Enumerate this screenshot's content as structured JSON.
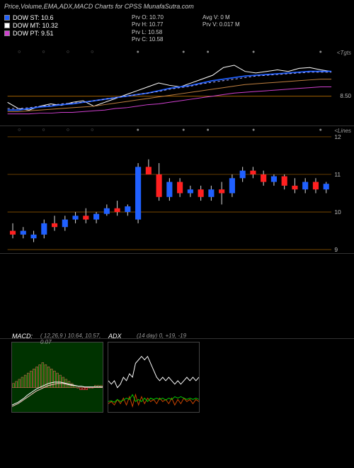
{
  "title": "Price,Volume,EMA,ADX,MACD Charts for CPSS MunafaSutra.com",
  "legend": [
    {
      "label": "DOW ST: 10.6",
      "color": "#2060ff"
    },
    {
      "label": "DOW MT: 10.32",
      "color": "#ffffff"
    },
    {
      "label": "DOW PT: 9.51",
      "color": "#d040d0"
    }
  ],
  "stats1": {
    "o": "Prv   O: 10.70",
    "h": "Prv   H: 10.77",
    "l": "Prv   L: 10.58",
    "c": "Prv   C: 10.58"
  },
  "stats2": {
    "avgv": "Avg V: 0  M",
    "prvv": "Prv   V: 0.017 M"
  },
  "ema_pane": {
    "label": "<Tgts",
    "ref_line": {
      "y": 0.62,
      "label": "8.50"
    },
    "lines": {
      "white": [
        0.7,
        0.78,
        0.8,
        0.75,
        0.72,
        0.74,
        0.7,
        0.68,
        0.75,
        0.7,
        0.65,
        0.6,
        0.55,
        0.5,
        0.45,
        0.48,
        0.5,
        0.45,
        0.4,
        0.35,
        0.25,
        0.22,
        0.3,
        0.32,
        0.3,
        0.28,
        0.3,
        0.26,
        0.25,
        0.28,
        0.3
      ],
      "blue": [
        0.8,
        0.8,
        0.78,
        0.76,
        0.75,
        0.73,
        0.72,
        0.7,
        0.68,
        0.66,
        0.64,
        0.62,
        0.6,
        0.58,
        0.55,
        0.52,
        0.5,
        0.48,
        0.45,
        0.42,
        0.4,
        0.38,
        0.36,
        0.35,
        0.34,
        0.33,
        0.32,
        0.31,
        0.3,
        0.3,
        0.3
      ],
      "dashed": [
        0.78,
        0.78,
        0.77,
        0.75,
        0.74,
        0.72,
        0.71,
        0.7,
        0.68,
        0.66,
        0.64,
        0.62,
        0.6,
        0.58,
        0.56,
        0.53,
        0.51,
        0.49,
        0.46,
        0.44,
        0.42,
        0.4,
        0.38,
        0.36,
        0.35,
        0.34,
        0.33,
        0.32,
        0.31,
        0.31,
        0.31
      ],
      "orange": [
        0.82,
        0.82,
        0.81,
        0.8,
        0.79,
        0.78,
        0.77,
        0.76,
        0.75,
        0.73,
        0.71,
        0.69,
        0.67,
        0.65,
        0.63,
        0.61,
        0.59,
        0.57,
        0.55,
        0.53,
        0.51,
        0.49,
        0.47,
        0.46,
        0.45,
        0.44,
        0.43,
        0.42,
        0.41,
        0.4,
        0.4
      ],
      "magenta": [
        0.85,
        0.85,
        0.85,
        0.84,
        0.84,
        0.83,
        0.83,
        0.82,
        0.81,
        0.8,
        0.78,
        0.77,
        0.75,
        0.73,
        0.72,
        0.7,
        0.68,
        0.66,
        0.64,
        0.62,
        0.6,
        0.58,
        0.57,
        0.56,
        0.55,
        0.54,
        0.53,
        0.52,
        0.51,
        0.5,
        0.5
      ]
    },
    "colors": {
      "white": "#ffffff",
      "blue": "#2060ff",
      "dashed": "#b0b0ff",
      "orange": "#c08040",
      "magenta": "#d040d0"
    }
  },
  "candle_pane": {
    "label": "<Lines",
    "ymin": 9,
    "ymax": 12,
    "grid": [
      9,
      10,
      11,
      12
    ],
    "up_color": "#2060ff",
    "down_color": "#ff2020",
    "wick_color": "#ccc",
    "candles": [
      {
        "o": 9.5,
        "h": 9.7,
        "l": 9.3,
        "c": 9.4
      },
      {
        "o": 9.4,
        "h": 9.6,
        "l": 9.3,
        "c": 9.5
      },
      {
        "o": 9.3,
        "h": 9.5,
        "l": 9.2,
        "c": 9.4
      },
      {
        "o": 9.4,
        "h": 9.8,
        "l": 9.3,
        "c": 9.7
      },
      {
        "o": 9.7,
        "h": 9.9,
        "l": 9.5,
        "c": 9.6
      },
      {
        "o": 9.6,
        "h": 9.9,
        "l": 9.5,
        "c": 9.8
      },
      {
        "o": 9.8,
        "h": 10.0,
        "l": 9.7,
        "c": 9.9
      },
      {
        "o": 9.9,
        "h": 10.1,
        "l": 9.7,
        "c": 9.8
      },
      {
        "o": 9.8,
        "h": 10.0,
        "l": 9.7,
        "c": 9.95
      },
      {
        "o": 9.95,
        "h": 10.2,
        "l": 9.9,
        "c": 10.1
      },
      {
        "o": 10.1,
        "h": 10.3,
        "l": 9.9,
        "c": 10.0
      },
      {
        "o": 10.0,
        "h": 10.2,
        "l": 9.9,
        "c": 10.15
      },
      {
        "o": 9.8,
        "h": 11.3,
        "l": 9.7,
        "c": 11.2
      },
      {
        "o": 11.2,
        "h": 11.4,
        "l": 11.0,
        "c": 11.0
      },
      {
        "o": 11.0,
        "h": 11.3,
        "l": 10.3,
        "c": 10.4
      },
      {
        "o": 10.4,
        "h": 10.9,
        "l": 10.3,
        "c": 10.8
      },
      {
        "o": 10.8,
        "h": 10.9,
        "l": 10.4,
        "c": 10.5
      },
      {
        "o": 10.5,
        "h": 10.7,
        "l": 10.4,
        "c": 10.6
      },
      {
        "o": 10.6,
        "h": 10.7,
        "l": 10.3,
        "c": 10.4
      },
      {
        "o": 10.4,
        "h": 10.7,
        "l": 10.3,
        "c": 10.6
      },
      {
        "o": 10.6,
        "h": 10.8,
        "l": 10.2,
        "c": 10.5
      },
      {
        "o": 10.5,
        "h": 11.0,
        "l": 10.4,
        "c": 10.9
      },
      {
        "o": 10.9,
        "h": 11.2,
        "l": 10.8,
        "c": 11.1
      },
      {
        "o": 11.1,
        "h": 11.2,
        "l": 10.9,
        "c": 11.0
      },
      {
        "o": 11.0,
        "h": 11.1,
        "l": 10.7,
        "c": 10.8
      },
      {
        "o": 10.8,
        "h": 11.0,
        "l": 10.7,
        "c": 10.95
      },
      {
        "o": 10.95,
        "h": 11.0,
        "l": 10.6,
        "c": 10.7
      },
      {
        "o": 10.7,
        "h": 10.9,
        "l": 10.5,
        "c": 10.6
      },
      {
        "o": 10.6,
        "h": 10.9,
        "l": 10.5,
        "c": 10.8
      },
      {
        "o": 10.8,
        "h": 10.9,
        "l": 10.5,
        "c": 10.6
      },
      {
        "o": 10.6,
        "h": 10.8,
        "l": 10.5,
        "c": 10.75
      }
    ]
  },
  "macd": {
    "title": "MACD:",
    "params": "( 12,26,9 ) 10.64,  10.57,  0.07",
    "zero": 0.65,
    "hist": [
      0.02,
      0.03,
      0.04,
      0.05,
      0.06,
      0.07,
      0.08,
      0.09,
      0.1,
      0.11,
      0.12,
      0.11,
      0.1,
      0.09,
      0.08,
      0.07,
      0.06,
      0.05,
      0.04,
      0.03,
      0.02,
      0.01,
      0.0,
      -0.01,
      -0.01,
      -0.01,
      0.0,
      0.0,
      0.01,
      0.01,
      0.01
    ],
    "hist_up": "#006600",
    "hist_down": "#660000",
    "hist_border": "#ff6060",
    "macd_line": [
      0.9,
      0.88,
      0.86,
      0.83,
      0.8,
      0.76,
      0.73,
      0.7,
      0.67,
      0.65,
      0.63,
      0.61,
      0.59,
      0.58,
      0.57,
      0.57,
      0.57,
      0.58,
      0.59,
      0.6,
      0.61,
      0.62,
      0.63,
      0.63,
      0.64,
      0.64,
      0.64,
      0.64,
      0.64,
      0.64,
      0.64
    ],
    "signal_line": [
      0.92,
      0.9,
      0.88,
      0.85,
      0.82,
      0.79,
      0.76,
      0.73,
      0.7,
      0.68,
      0.66,
      0.64,
      0.62,
      0.61,
      0.6,
      0.59,
      0.59,
      0.59,
      0.6,
      0.61,
      0.62,
      0.62,
      0.63,
      0.63,
      0.64,
      0.64,
      0.64,
      0.64,
      0.64,
      0.64,
      0.64
    ],
    "macd_color": "#ffffff",
    "signal_color": "#ffcccc"
  },
  "adx": {
    "title": "ADX",
    "params": "(14  day) 0,  +19,  -19",
    "adx_line": [
      0.55,
      0.6,
      0.55,
      0.65,
      0.6,
      0.5,
      0.55,
      0.45,
      0.5,
      0.3,
      0.25,
      0.2,
      0.25,
      0.2,
      0.3,
      0.4,
      0.5,
      0.55,
      0.5,
      0.55,
      0.5,
      0.55,
      0.6,
      0.55,
      0.6,
      0.55,
      0.5,
      0.55,
      0.5,
      0.55,
      0.5
    ],
    "plus_line": [
      0.85,
      0.84,
      0.86,
      0.82,
      0.85,
      0.83,
      0.8,
      0.82,
      0.75,
      0.85,
      0.82,
      0.85,
      0.8,
      0.85,
      0.8,
      0.82,
      0.8,
      0.82,
      0.8,
      0.83,
      0.8,
      0.82,
      0.78,
      0.8,
      0.78,
      0.8,
      0.82,
      0.8,
      0.82,
      0.8,
      0.82
    ],
    "minus_line": [
      0.88,
      0.85,
      0.9,
      0.82,
      0.88,
      0.8,
      0.9,
      0.78,
      0.92,
      0.75,
      0.9,
      0.78,
      0.88,
      0.8,
      0.85,
      0.82,
      0.88,
      0.8,
      0.85,
      0.82,
      0.88,
      0.8,
      0.9,
      0.82,
      0.88,
      0.8,
      0.85,
      0.82,
      0.88,
      0.82,
      0.85
    ],
    "adx_color": "#ffffff",
    "plus_color": "#00cc00",
    "minus_color": "#cc4400"
  }
}
